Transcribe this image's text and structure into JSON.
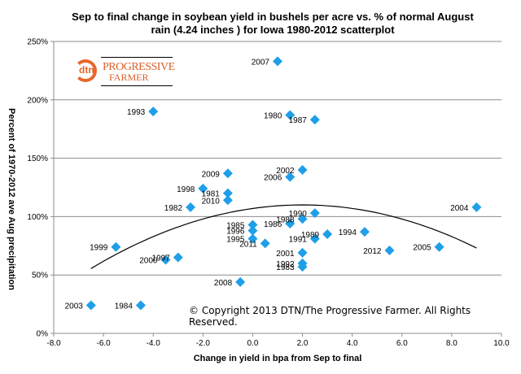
{
  "chart_data": {
    "type": "scatter",
    "title_line1": "Sep to final change in soybean yield in bushels per acre vs. % of normal August",
    "title_line2": "rain  (4.24 inches ) for Iowa 1980-2012 scatterplot",
    "xlabel": "Change in yield in bpa from Sep to final",
    "ylabel": "Percent of 1970-2012 ave Aug precipitation",
    "xlim": [
      -8.0,
      10.0
    ],
    "ylim": [
      0,
      250
    ],
    "x_ticks": [
      "-8.0",
      "-6.0",
      "-4.0",
      "-2.0",
      "0.0",
      "2.0",
      "4.0",
      "6.0",
      "8.0",
      "10.0"
    ],
    "x_tick_values": [
      -8,
      -6,
      -4,
      -2,
      0,
      2,
      4,
      6,
      8,
      10
    ],
    "y_ticks": [
      "0%",
      "50%",
      "100%",
      "150%",
      "200%",
      "250%"
    ],
    "y_tick_values": [
      0,
      50,
      100,
      150,
      200,
      250
    ],
    "grid": "horizontal",
    "marker_color": "#1e9fe8",
    "points": [
      {
        "label": "2007",
        "x": 1.0,
        "y": 233
      },
      {
        "label": "1993",
        "x": -4.0,
        "y": 190
      },
      {
        "label": "1980",
        "x": 1.5,
        "y": 187
      },
      {
        "label": "1987",
        "x": 2.5,
        "y": 183
      },
      {
        "label": "2002",
        "x": 2.0,
        "y": 140
      },
      {
        "label": "2009",
        "x": -1.0,
        "y": 137
      },
      {
        "label": "2006",
        "x": 1.5,
        "y": 134
      },
      {
        "label": "1998",
        "x": -2.0,
        "y": 124
      },
      {
        "label": "1981",
        "x": -1.0,
        "y": 120
      },
      {
        "label": "2010",
        "x": -1.0,
        "y": 114
      },
      {
        "label": "1982",
        "x": -2.5,
        "y": 108
      },
      {
        "label": "2004",
        "x": 9.0,
        "y": 108
      },
      {
        "label": "1990",
        "x": 2.5,
        "y": 103
      },
      {
        "label": "1988",
        "x": 2.0,
        "y": 98
      },
      {
        "label": "1986",
        "x": 1.5,
        "y": 94
      },
      {
        "label": "1985",
        "x": 0.0,
        "y": 93
      },
      {
        "label": "1996",
        "x": 0.0,
        "y": 88
      },
      {
        "label": "1994",
        "x": 4.5,
        "y": 87
      },
      {
        "label": "1989",
        "x": 3.0,
        "y": 85
      },
      {
        "label": "1995",
        "x": 0.0,
        "y": 81
      },
      {
        "label": "1991",
        "x": 2.5,
        "y": 81
      },
      {
        "label": "2011",
        "x": 0.5,
        "y": 77
      },
      {
        "label": "1999",
        "x": -5.5,
        "y": 74
      },
      {
        "label": "2005",
        "x": 7.5,
        "y": 74
      },
      {
        "label": "2012",
        "x": 5.5,
        "y": 71
      },
      {
        "label": "2001",
        "x": 2.0,
        "y": 69
      },
      {
        "label": "1997",
        "x": -3.0,
        "y": 65
      },
      {
        "label": "2000",
        "x": -3.5,
        "y": 63
      },
      {
        "label": "1992",
        "x": 2.0,
        "y": 60
      },
      {
        "label": "1983",
        "x": 2.0,
        "y": 57
      },
      {
        "label": "2008",
        "x": -0.5,
        "y": 44
      },
      {
        "label": "2003",
        "x": -6.5,
        "y": 24
      },
      {
        "label": "1984",
        "x": -4.5,
        "y": 24
      }
    ],
    "trendline": {
      "type": "polynomial-2",
      "x_range": [
        -6.5,
        9.0
      ],
      "vertex_x": 2.0,
      "vertex_y": 110,
      "a": -0.754
    }
  },
  "copyright": "© Copyright 2013 DTN/The Progressive Farmer. All Rights Reserved.",
  "logo": {
    "dtn": "dtn",
    "pf_line1": "PROGRESSIVE",
    "pf_line2": "FARMER"
  }
}
